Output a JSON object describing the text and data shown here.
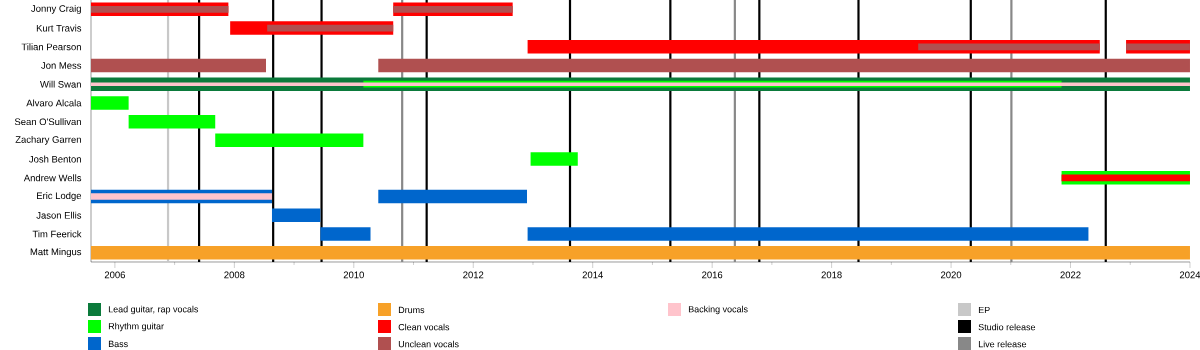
{
  "chart_data": {
    "type": "bar",
    "orientation": "horizontal",
    "categories": [
      "Jonny Craig",
      "Kurt Travis",
      "Tilian Pearson",
      "Jon Mess",
      "Will Swan",
      "Alvaro Alcala",
      "Sean O'Sullivan",
      "Zachary Garren",
      "Josh Benton",
      "Andrew Wells",
      "Eric Lodge",
      "Jason Ellis",
      "Tim Feerick",
      "Matt Mingus"
    ],
    "series": [
      {
        "name": "Lead guitar, rap vocals",
        "color": "#0b7a3b",
        "base": [
          null,
          null,
          null,
          null,
          2005.6,
          null,
          null,
          null,
          null,
          null,
          null,
          null,
          null,
          null
        ],
        "values": [
          null,
          null,
          null,
          null,
          18.4,
          null,
          null,
          null,
          null,
          null,
          null,
          null,
          null,
          null
        ]
      },
      {
        "name": "Rhythm guitar",
        "color": "#00ff00",
        "base": [
          null,
          null,
          null,
          null,
          2010.16,
          2005.6,
          2006.23,
          2007.68,
          2012.96,
          2021.85,
          null,
          null,
          null,
          null
        ],
        "values": [
          null,
          null,
          null,
          null,
          11.69,
          0.63,
          1.45,
          2.48,
          0.79,
          2.15,
          null,
          null,
          null,
          null
        ]
      },
      {
        "name": "Bass",
        "color": "#0066cc",
        "base": [
          null,
          null,
          null,
          null,
          null,
          null,
          null,
          null,
          null,
          null,
          2005.6,
          2008.63,
          2009.44,
          null
        ],
        "values": [
          null,
          null,
          null,
          null,
          null,
          null,
          null,
          null,
          null,
          null,
          3.03,
          0.81,
          0.84,
          null
        ]
      },
      {
        "color": "#0066cc",
        "base": [
          null,
          null,
          null,
          null,
          null,
          null,
          null,
          null,
          null,
          null,
          2010.41,
          null,
          2012.91,
          null
        ],
        "values": [
          null,
          null,
          null,
          null,
          null,
          null,
          null,
          null,
          null,
          null,
          2.49,
          null,
          9.39,
          null
        ]
      },
      {
        "name": "Drums",
        "color": "#f7a128",
        "base": [
          null,
          null,
          null,
          null,
          null,
          null,
          null,
          null,
          null,
          null,
          null,
          null,
          null,
          2005.6
        ],
        "values": [
          null,
          null,
          null,
          null,
          null,
          null,
          null,
          null,
          null,
          null,
          null,
          null,
          null,
          18.4
        ]
      },
      {
        "name": "Clean vocals",
        "color": "#ff0000",
        "base": [
          2005.6,
          2007.93,
          2012.91,
          null,
          null,
          null,
          null,
          null,
          null,
          2021.85,
          null,
          null,
          null,
          null
        ],
        "values": [
          2.3,
          2.73,
          9.58,
          null,
          null,
          null,
          null,
          null,
          null,
          2.15,
          null,
          null,
          null,
          null
        ]
      },
      {
        "color": "#ff0000",
        "base": [
          2010.66,
          null,
          2022.93,
          null,
          null,
          null,
          null,
          null,
          null,
          null,
          null,
          null,
          null,
          null
        ],
        "values": [
          2.0,
          null,
          1.07,
          null,
          null,
          null,
          null,
          null,
          null,
          null,
          null,
          null,
          null,
          null
        ]
      },
      {
        "name": "Unclean vocals",
        "color": "#b05050",
        "base": [
          2005.6,
          2008.55,
          2019.45,
          2005.6,
          null,
          null,
          null,
          null,
          null,
          null,
          null,
          null,
          null,
          null
        ],
        "values": [
          2.3,
          2.11,
          3.04,
          2.93,
          null,
          null,
          null,
          null,
          null,
          null,
          null,
          null,
          null,
          null
        ]
      },
      {
        "color": "#b05050",
        "base": [
          2010.66,
          null,
          2022.93,
          2010.41,
          null,
          null,
          null,
          null,
          null,
          null,
          null,
          null,
          null,
          null
        ],
        "values": [
          2.0,
          null,
          1.07,
          13.59,
          null,
          null,
          null,
          null,
          null,
          null,
          null,
          null,
          null,
          null
        ]
      },
      {
        "name": "Backing vocals",
        "color": "#ffc4cc",
        "base": [
          null,
          null,
          null,
          null,
          2005.6,
          null,
          null,
          null,
          null,
          null,
          2005.6,
          null,
          null,
          null
        ],
        "values": [
          null,
          null,
          null,
          null,
          18.4,
          null,
          null,
          null,
          null,
          null,
          3.03,
          null,
          null,
          null
        ]
      }
    ],
    "xlim": [
      2005.6,
      2024
    ],
    "xticks": [
      2006,
      {
        "value": 2007,
        "label": null
      },
      2008,
      {
        "value": 2009,
        "label": null
      },
      2010,
      {
        "value": 2011,
        "label": null
      },
      2012,
      {
        "value": 2013,
        "label": null
      },
      2014,
      {
        "value": 2015,
        "label": null
      },
      2016,
      {
        "value": 2017,
        "label": null
      },
      2018,
      {
        "value": 2019,
        "label": null
      },
      2020,
      {
        "value": 2021,
        "label": null
      },
      2022,
      {
        "value": 2023,
        "label": null
      },
      2024
    ],
    "ref_lines": [
      {
        "axis": "x",
        "value": 2006.89,
        "label": "EP",
        "color": "#c8c8c8"
      },
      {
        "axis": "x",
        "value": 2007.41,
        "label": "Studio release",
        "color": "#000000"
      },
      {
        "axis": "x",
        "value": 2008.65,
        "label": null,
        "color": "#000000"
      },
      {
        "axis": "x",
        "value": 2009.46,
        "label": null,
        "color": "#000000"
      },
      {
        "axis": "x",
        "value": 2010.81,
        "label": "Live release",
        "color": "#888888"
      },
      {
        "axis": "x",
        "value": 2011.22,
        "label": null,
        "color": "#000000"
      },
      {
        "axis": "x",
        "value": 2013.62,
        "label": null,
        "color": "#000000"
      },
      {
        "axis": "x",
        "value": 2015.3,
        "label": null,
        "color": "#000000"
      },
      {
        "axis": "x",
        "value": 2016.38,
        "label": null,
        "color": "#888888"
      },
      {
        "axis": "x",
        "value": 2016.79,
        "label": null,
        "color": "#000000"
      },
      {
        "axis": "x",
        "value": 2018.45,
        "label": null,
        "color": "#000000"
      },
      {
        "axis": "x",
        "value": 2020.33,
        "label": null,
        "color": "#000000"
      },
      {
        "axis": "x",
        "value": 2021.01,
        "label": null,
        "color": "#888888"
      },
      {
        "axis": "x",
        "value": 2022.59,
        "label": null,
        "color": "#000000"
      }
    ],
    "legend": "bottom"
  }
}
